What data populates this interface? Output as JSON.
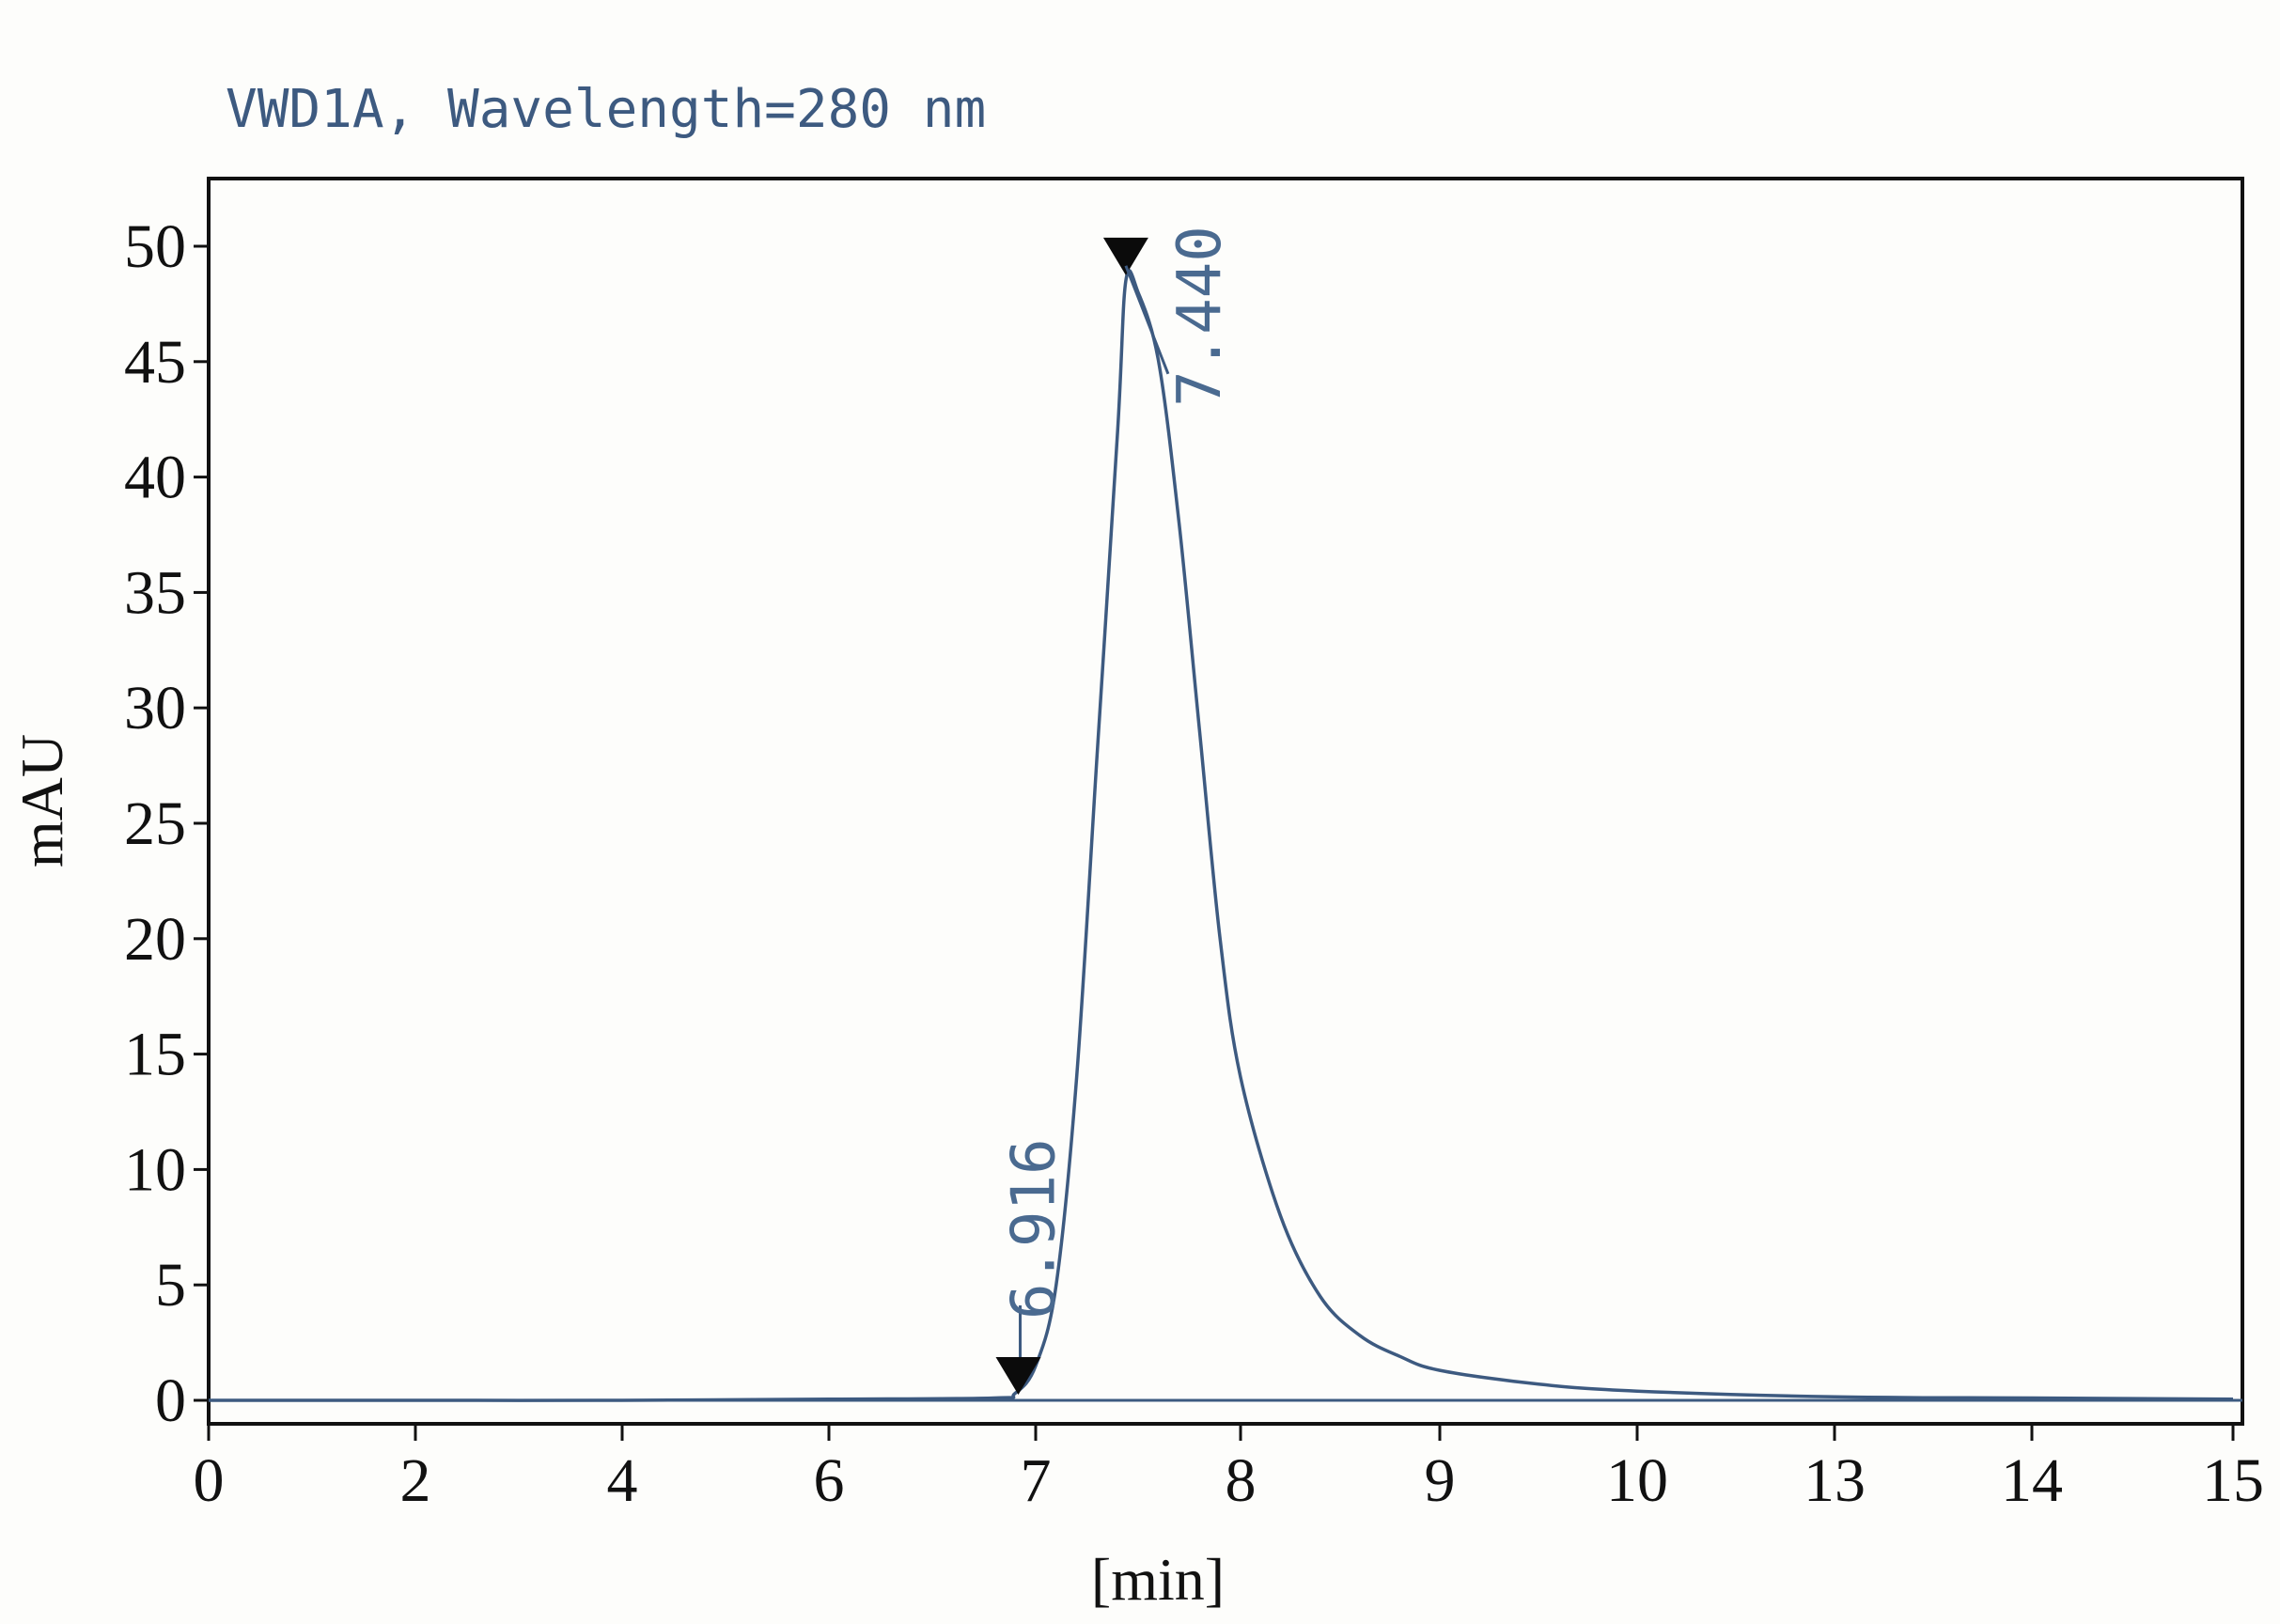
{
  "chart_data": {
    "type": "line",
    "title": "VWD1A, Wavelength=280 nm",
    "xlabel": "[min]",
    "ylabel": "mAU",
    "x_ticks": [
      "0",
      "2",
      "4",
      "6",
      "7",
      "8",
      "9",
      "10",
      "13",
      "14",
      "15"
    ],
    "y_ticks": [
      "0",
      "5",
      "10",
      "15",
      "20",
      "25",
      "30",
      "35",
      "40",
      "45",
      "50"
    ],
    "ylim": [
      -1,
      53
    ],
    "grid": false,
    "series": [
      {
        "color": "#3d5a80",
        "x": [
          0,
          2,
          4,
          6,
          6.8,
          6.9,
          7.0,
          7.1,
          7.2,
          7.3,
          7.4,
          7.44,
          7.5,
          7.6,
          7.7,
          7.8,
          7.9,
          8.0,
          8.2,
          8.4,
          8.6,
          8.8,
          9.0,
          9.5,
          10.0,
          13.0,
          14.0,
          15.0
        ],
        "y": [
          0,
          0,
          0,
          0.05,
          0.1,
          0.3,
          1.5,
          5,
          14,
          28,
          42,
          48.5,
          48,
          45,
          38,
          29,
          20,
          14,
          8,
          4.5,
          2.8,
          1.9,
          1.3,
          0.7,
          0.4,
          0.15,
          0.1,
          0.05
        ]
      }
    ],
    "peaks": [
      {
        "label": "6.916",
        "x": 6.916,
        "y": 0
      },
      {
        "label": "7.440",
        "x": 7.44,
        "y": 48.5
      }
    ]
  }
}
